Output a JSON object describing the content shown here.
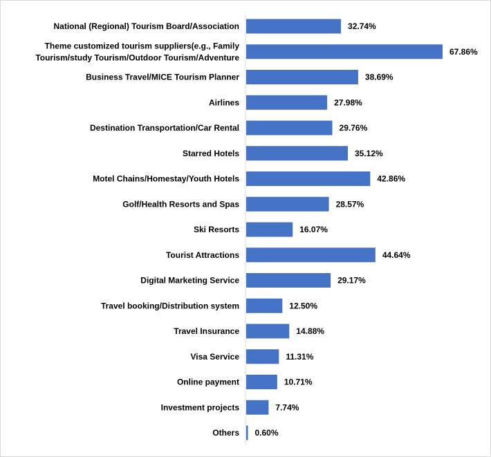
{
  "chart_data": {
    "type": "bar",
    "orientation": "horizontal",
    "title": "",
    "xlabel": "",
    "ylabel": "",
    "categories": [
      [
        "National (Regional) Tourism  Board/Association"
      ],
      [
        "Theme customized tourism suppliers(e.g., Family",
        "Tourism/study Tourism/Outdoor Tourism/Adventure"
      ],
      [
        "Business Travel/MICE Tourism Planner"
      ],
      [
        "Airlines"
      ],
      [
        "Destination Transportation/Car Rental"
      ],
      [
        "Starred Hotels"
      ],
      [
        "Motel Chains/Homestay/Youth Hotels"
      ],
      [
        "Golf/Health Resorts and Spas"
      ],
      [
        "Ski Resorts"
      ],
      [
        "Tourist Attractions"
      ],
      [
        "Digital Marketing Service"
      ],
      [
        "Travel booking/Distribution system"
      ],
      [
        "Travel Insurance"
      ],
      [
        "Visa Service"
      ],
      [
        "Online payment"
      ],
      [
        "Investment projects"
      ],
      [
        "Others"
      ]
    ],
    "values": [
      32.74,
      67.86,
      38.69,
      27.98,
      29.76,
      35.12,
      42.86,
      28.57,
      16.07,
      44.64,
      29.17,
      12.5,
      14.88,
      11.31,
      10.71,
      7.74,
      0.6
    ],
    "value_labels": [
      "32.74%",
      "67.86%",
      "38.69%",
      "27.98%",
      "29.76%",
      "35.12%",
      "42.86%",
      "28.57%",
      "16.07%",
      "44.64%",
      "29.17%",
      "12.50%",
      "14.88%",
      "11.31%",
      "10.71%",
      "7.74%",
      "0.60%"
    ],
    "xlim": [
      0,
      67.86
    ],
    "grid": false,
    "legend": "none",
    "bar_color": "#4472C4",
    "axis_color": "#d9d9d9"
  }
}
